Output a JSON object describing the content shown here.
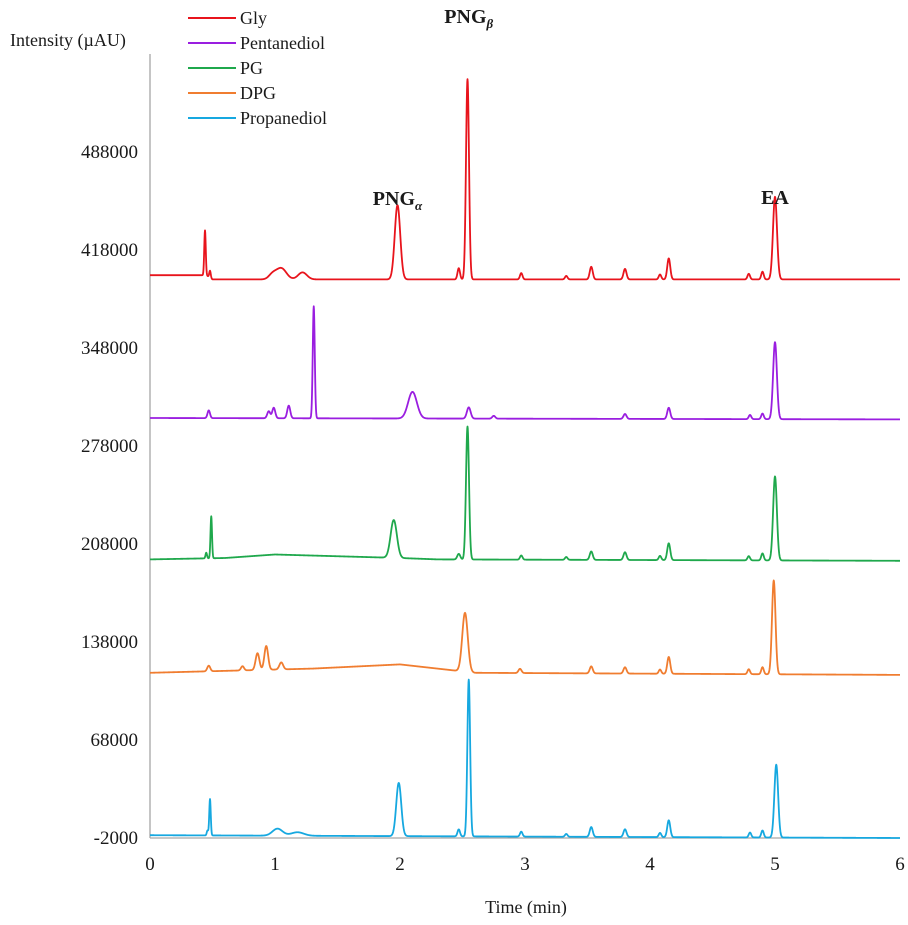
{
  "chart_data": {
    "type": "line",
    "ylabel": "Intensity (µAU)",
    "xlabel": "Time (min)",
    "xlim": [
      0,
      6
    ],
    "ylim": [
      -2000,
      558000
    ],
    "x_ticks": [
      "0",
      "1",
      "2",
      "3",
      "4",
      "5",
      "6"
    ],
    "y_ticks": [
      "-2000",
      "68000",
      "138000",
      "208000",
      "278000",
      "348000",
      "418000",
      "488000"
    ],
    "y_tick_values": [
      -2000,
      68000,
      138000,
      208000,
      278000,
      348000,
      418000,
      488000
    ],
    "grid": false,
    "legend_position": "top-left",
    "annotations": [
      {
        "text": "PNG",
        "subscript": "α",
        "x": 1.98,
        "y": 450000
      },
      {
        "text": "PNG",
        "subscript": "β",
        "x": 2.55,
        "y": 580000
      },
      {
        "text": "EA",
        "subscript": "",
        "x": 5.0,
        "y": 451000
      }
    ],
    "series": [
      {
        "name": "Gly",
        "color": "#e8141c",
        "baseline": 400000,
        "drift": [
          [
            0,
            0
          ],
          [
            0.45,
            0
          ],
          [
            0.5,
            -3000
          ],
          [
            6,
            -3000
          ]
        ],
        "bumps": [
          {
            "x": 0.44,
            "h": 32000,
            "w": 0.006
          },
          {
            "x": 0.48,
            "h": 5000,
            "w": 0.006
          },
          {
            "x": 0.98,
            "h": 3500,
            "w": 0.03
          },
          {
            "x": 1.05,
            "h": 8000,
            "w": 0.04
          },
          {
            "x": 1.22,
            "h": 5000,
            "w": 0.035
          },
          {
            "x": 1.98,
            "h": 53000,
            "w": 0.022
          },
          {
            "x": 2.47,
            "h": 8000,
            "w": 0.01
          },
          {
            "x": 2.54,
            "h": 143000,
            "w": 0.012
          },
          {
            "x": 2.97,
            "h": 4500,
            "w": 0.01
          },
          {
            "x": 3.33,
            "h": 2500,
            "w": 0.01
          },
          {
            "x": 3.53,
            "h": 9000,
            "w": 0.012
          },
          {
            "x": 3.8,
            "h": 7500,
            "w": 0.012
          },
          {
            "x": 4.08,
            "h": 3500,
            "w": 0.01
          },
          {
            "x": 4.15,
            "h": 15000,
            "w": 0.012
          },
          {
            "x": 4.79,
            "h": 4000,
            "w": 0.01
          },
          {
            "x": 4.9,
            "h": 5500,
            "w": 0.01
          },
          {
            "x": 5.0,
            "h": 59000,
            "w": 0.016
          }
        ]
      },
      {
        "name": "Pentanediol",
        "color": "#9a1ee0",
        "baseline": 298000,
        "drift": [
          [
            0,
            0
          ],
          [
            6,
            -1000
          ]
        ],
        "bumps": [
          {
            "x": 0.47,
            "h": 5500,
            "w": 0.01
          },
          {
            "x": 0.95,
            "h": 5000,
            "w": 0.012
          },
          {
            "x": 0.99,
            "h": 7500,
            "w": 0.012
          },
          {
            "x": 1.11,
            "h": 9000,
            "w": 0.012
          },
          {
            "x": 1.31,
            "h": 80000,
            "w": 0.008
          },
          {
            "x": 2.1,
            "h": 19000,
            "w": 0.035
          },
          {
            "x": 2.55,
            "h": 8000,
            "w": 0.015
          },
          {
            "x": 2.75,
            "h": 2000,
            "w": 0.012
          },
          {
            "x": 3.8,
            "h": 3500,
            "w": 0.012
          },
          {
            "x": 4.15,
            "h": 8000,
            "w": 0.012
          },
          {
            "x": 4.8,
            "h": 3000,
            "w": 0.01
          },
          {
            "x": 4.9,
            "h": 4000,
            "w": 0.01
          },
          {
            "x": 5.0,
            "h": 55000,
            "w": 0.015
          }
        ]
      },
      {
        "name": "PG",
        "color": "#1fa84c",
        "baseline": 197000,
        "drift": [
          [
            0,
            0
          ],
          [
            0.6,
            1000
          ],
          [
            1.0,
            3500
          ],
          [
            2.0,
            1000
          ],
          [
            2.3,
            0
          ],
          [
            6,
            -1000
          ]
        ],
        "bumps": [
          {
            "x": 0.45,
            "h": 4000,
            "w": 0.006
          },
          {
            "x": 0.49,
            "h": 30000,
            "w": 0.006
          },
          {
            "x": 1.95,
            "h": 27000,
            "w": 0.025
          },
          {
            "x": 2.47,
            "h": 4000,
            "w": 0.012
          },
          {
            "x": 2.54,
            "h": 95000,
            "w": 0.012
          },
          {
            "x": 2.97,
            "h": 3000,
            "w": 0.01
          },
          {
            "x": 3.33,
            "h": 2000,
            "w": 0.01
          },
          {
            "x": 3.53,
            "h": 6000,
            "w": 0.012
          },
          {
            "x": 3.8,
            "h": 5500,
            "w": 0.012
          },
          {
            "x": 4.08,
            "h": 3000,
            "w": 0.01
          },
          {
            "x": 4.15,
            "h": 12000,
            "w": 0.012
          },
          {
            "x": 4.79,
            "h": 3000,
            "w": 0.01
          },
          {
            "x": 4.9,
            "h": 5000,
            "w": 0.01
          },
          {
            "x": 5.0,
            "h": 60000,
            "w": 0.015
          }
        ]
      },
      {
        "name": "DPG",
        "color": "#f07d30",
        "baseline": 116000,
        "drift": [
          [
            0,
            0
          ],
          [
            1.3,
            3000
          ],
          [
            2.0,
            6000
          ],
          [
            2.4,
            2000
          ],
          [
            2.6,
            0
          ],
          [
            6,
            -1500
          ]
        ],
        "bumps": [
          {
            "x": 0.47,
            "h": 4000,
            "w": 0.012
          },
          {
            "x": 0.74,
            "h": 3000,
            "w": 0.012
          },
          {
            "x": 0.86,
            "h": 12000,
            "w": 0.015
          },
          {
            "x": 0.93,
            "h": 17000,
            "w": 0.015
          },
          {
            "x": 1.05,
            "h": 5000,
            "w": 0.015
          },
          {
            "x": 2.52,
            "h": 42000,
            "w": 0.022
          },
          {
            "x": 2.96,
            "h": 3000,
            "w": 0.012
          },
          {
            "x": 3.53,
            "h": 5000,
            "w": 0.012
          },
          {
            "x": 3.8,
            "h": 4500,
            "w": 0.012
          },
          {
            "x": 4.08,
            "h": 3000,
            "w": 0.01
          },
          {
            "x": 4.15,
            "h": 12000,
            "w": 0.012
          },
          {
            "x": 4.79,
            "h": 3500,
            "w": 0.01
          },
          {
            "x": 4.9,
            "h": 5000,
            "w": 0.01
          },
          {
            "x": 4.99,
            "h": 67000,
            "w": 0.014
          }
        ]
      },
      {
        "name": "Propanediol",
        "color": "#16a8e0",
        "baseline": 0,
        "drift": [
          [
            0,
            0
          ],
          [
            6,
            -2000
          ]
        ],
        "bumps": [
          {
            "x": 0.46,
            "h": 3500,
            "w": 0.006
          },
          {
            "x": 0.48,
            "h": 26000,
            "w": 0.006
          },
          {
            "x": 1.02,
            "h": 5000,
            "w": 0.04
          },
          {
            "x": 1.18,
            "h": 2500,
            "w": 0.05
          },
          {
            "x": 1.99,
            "h": 38000,
            "w": 0.02
          },
          {
            "x": 2.47,
            "h": 5000,
            "w": 0.01
          },
          {
            "x": 2.55,
            "h": 112000,
            "w": 0.011
          },
          {
            "x": 2.97,
            "h": 3500,
            "w": 0.01
          },
          {
            "x": 3.33,
            "h": 2000,
            "w": 0.01
          },
          {
            "x": 3.53,
            "h": 7000,
            "w": 0.012
          },
          {
            "x": 3.8,
            "h": 5500,
            "w": 0.012
          },
          {
            "x": 4.08,
            "h": 3000,
            "w": 0.01
          },
          {
            "x": 4.15,
            "h": 12000,
            "w": 0.012
          },
          {
            "x": 4.8,
            "h": 3500,
            "w": 0.01
          },
          {
            "x": 4.9,
            "h": 5000,
            "w": 0.01
          },
          {
            "x": 5.01,
            "h": 52000,
            "w": 0.015
          }
        ]
      }
    ]
  }
}
